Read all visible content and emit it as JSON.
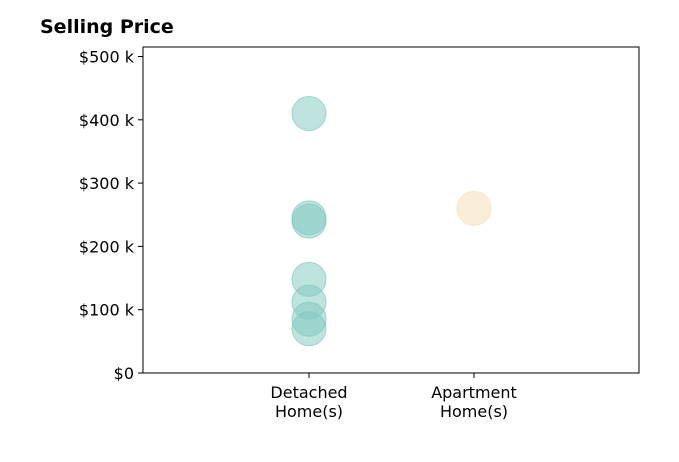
{
  "chart_data": {
    "type": "scatter",
    "title": "Selling Price",
    "xlabel": "",
    "ylabel": "",
    "categories": [
      "Detached\nHome(s)",
      "Apartment\nHome(s)"
    ],
    "series": [
      {
        "category": "Detached\nHome(s)",
        "color": "#7fc8bf",
        "values": [
          410000,
          245000,
          240000,
          148000,
          112000,
          85000,
          70000
        ]
      },
      {
        "category": "Apartment\nHome(s)",
        "color": "#f5deb3",
        "values": [
          260000
        ]
      }
    ],
    "yticks": [
      0,
      100000,
      200000,
      300000,
      400000,
      500000
    ],
    "ytick_labels": [
      "$0",
      "$100 k",
      "$200 k",
      "$300 k",
      "$400 k",
      "$500 k"
    ],
    "ylim": [
      0,
      515000
    ],
    "grid": false,
    "legend": "none"
  }
}
